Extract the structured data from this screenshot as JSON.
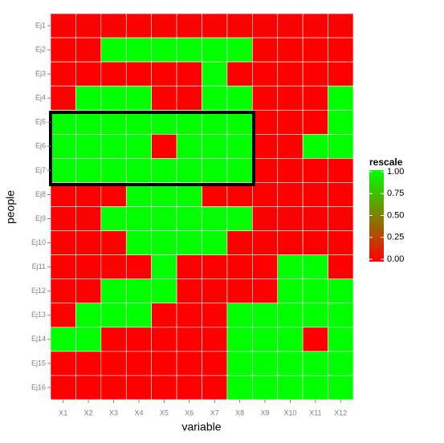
{
  "chart_data": {
    "type": "heatmap",
    "x_label": "variable",
    "y_label": "people",
    "x": [
      "X1",
      "X2",
      "X3",
      "X4",
      "X5",
      "X6",
      "X7",
      "X8",
      "X9",
      "X10",
      "X11",
      "X12"
    ],
    "y": [
      "Ej1",
      "Ej2",
      "Ej3",
      "Ej4",
      "Ej5",
      "Ej6",
      "Ej7",
      "Ej8",
      "Ej9",
      "Ej10",
      "Ej11",
      "Ej12",
      "Ej13",
      "Ej14",
      "Ej15",
      "Ej16"
    ],
    "values": [
      [
        0,
        0,
        0,
        0,
        0,
        0,
        0,
        0,
        0,
        0,
        0,
        0
      ],
      [
        0,
        0,
        1,
        1,
        1,
        1,
        1,
        1,
        0,
        0,
        0,
        0
      ],
      [
        0,
        0,
        0,
        0,
        0,
        0,
        1,
        0,
        0,
        0,
        0,
        0
      ],
      [
        0,
        1,
        1,
        1,
        0,
        0,
        1,
        1,
        0,
        0,
        0,
        1
      ],
      [
        1,
        1,
        1,
        1,
        1,
        1,
        1,
        1,
        0,
        0,
        0,
        1
      ],
      [
        1,
        1,
        1,
        1,
        0,
        1,
        1,
        1,
        0,
        0,
        1,
        1
      ],
      [
        1,
        1,
        1,
        1,
        1,
        1,
        1,
        1,
        0,
        0,
        0,
        0
      ],
      [
        0,
        0,
        0,
        1,
        1,
        1,
        0,
        0,
        0,
        0,
        0,
        0
      ],
      [
        0,
        0,
        1,
        1,
        1,
        1,
        1,
        1,
        0,
        0,
        0,
        0
      ],
      [
        0,
        0,
        0,
        1,
        1,
        1,
        1,
        0,
        0,
        0,
        0,
        0
      ],
      [
        0,
        0,
        0,
        0,
        1,
        0,
        0,
        0,
        0,
        1,
        1,
        0
      ],
      [
        0,
        0,
        1,
        1,
        1,
        0,
        0,
        0,
        0,
        1,
        1,
        1
      ],
      [
        0,
        1,
        1,
        1,
        0,
        0,
        0,
        1,
        1,
        1,
        1,
        1
      ],
      [
        1,
        1,
        0,
        0,
        0,
        0,
        0,
        1,
        1,
        1,
        0,
        1
      ],
      [
        0,
        0,
        0,
        0,
        0,
        0,
        0,
        1,
        1,
        1,
        1,
        1
      ],
      [
        0,
        0,
        0,
        0,
        0,
        0,
        0,
        1,
        1,
        1,
        1,
        1
      ]
    ],
    "legend_title": "rescale",
    "clim": [
      0,
      1
    ],
    "low_color": "#ff0000",
    "high_color": "#00ff00",
    "colorbar_ticks": [
      {
        "value": 0,
        "label": "0.00"
      },
      {
        "value": 0.25,
        "label": "0.25"
      },
      {
        "value": 0.5,
        "label": "0.50"
      },
      {
        "value": 0.75,
        "label": "0.75"
      },
      {
        "value": 1,
        "label": "1.00"
      }
    ]
  }
}
